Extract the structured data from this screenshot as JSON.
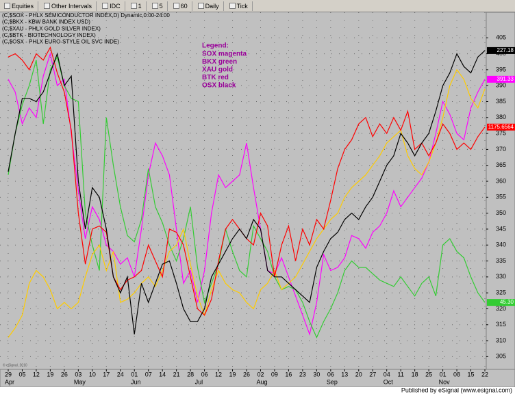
{
  "chart_data": {
    "type": "line",
    "toolbar": [
      "Equities",
      "Other Intervals",
      "IDC",
      "1",
      "5",
      "60",
      "Daily",
      "Tick"
    ],
    "header_lines": [
      "(C,$SOX - PHLX SEMICONDUCTOR INDEX,D) Dynamic,0:00-24:00",
      "(C,$BKX - KBW BANK INDEX USD)",
      "(C,$XAU - PHLX GOLD SILVER INDEX)",
      "(C,$BTK - BIOTECHNOLOGY INDEX)",
      "(C,$OSX - PHLX EURO-STYLE OIL SVC INDE)"
    ],
    "legend_title": "Legend:",
    "categories": [
      "29",
      null,
      "05",
      null,
      "12",
      null,
      "19",
      null,
      "26",
      null,
      "03",
      null,
      "10",
      null,
      "17",
      null,
      "24",
      null,
      "01",
      null,
      "07",
      null,
      "14",
      null,
      "21",
      null,
      "28",
      null,
      "06",
      null,
      "12",
      null,
      "19",
      null,
      "26",
      null,
      "02",
      null,
      "09",
      null,
      "16",
      null,
      "23",
      null,
      "30",
      null,
      "06",
      null,
      "13",
      null,
      "20",
      null,
      "27",
      null,
      "04",
      null,
      "11",
      null,
      "18",
      null,
      "25",
      null,
      "01",
      null,
      "08",
      null,
      "15",
      null,
      "22"
    ],
    "months": [
      "Apr",
      null,
      null,
      null,
      null,
      null,
      null,
      null,
      null,
      null,
      "May",
      null,
      null,
      null,
      null,
      null,
      null,
      null,
      "Jun",
      null,
      null,
      null,
      null,
      null,
      null,
      null,
      null,
      "Jul",
      null,
      null,
      null,
      null,
      null,
      null,
      null,
      null,
      "Aug",
      null,
      null,
      null,
      null,
      null,
      null,
      null,
      null,
      null,
      "Sep",
      null,
      null,
      null,
      null,
      null,
      null,
      null,
      "Oct",
      null,
      null,
      null,
      null,
      null,
      null,
      null,
      "Nov",
      null,
      null,
      null,
      null,
      null,
      null
    ],
    "series": [
      {
        "name": "SOX magenta",
        "color": "#ff00ff",
        "last_label": "391.33",
        "label_text_color": "#ffffff",
        "values": [
          392,
          388,
          378,
          383,
          380,
          393,
          400,
          390,
          392,
          375,
          357,
          342,
          352,
          348,
          340,
          338,
          334,
          336,
          330,
          345,
          362,
          372,
          368,
          362,
          345,
          328,
          332,
          322,
          332,
          350,
          362,
          358,
          360,
          362,
          372,
          358,
          345,
          332,
          331,
          336,
          330,
          324,
          318,
          312,
          322,
          337,
          332,
          333,
          336,
          343,
          342,
          339,
          344,
          346,
          350,
          357,
          352,
          355,
          358,
          361,
          366,
          375,
          385,
          381,
          375,
          373,
          383,
          388,
          392
        ]
      },
      {
        "name": "BKX green",
        "color": "#33cc33",
        "last_label": "45.30",
        "label_text_color": "#ffffff",
        "values": [
          362,
          375,
          384,
          390,
          398,
          378,
          395,
          399,
          390,
          386,
          385,
          350,
          340,
          332,
          380,
          365,
          352,
          343,
          341,
          348,
          364,
          352,
          347,
          340,
          335,
          342,
          352,
          333,
          322,
          328,
          334,
          345,
          338,
          332,
          330,
          346,
          342,
          338,
          330,
          326,
          327,
          326,
          322,
          316,
          311,
          316,
          320,
          325,
          332,
          335,
          333,
          333,
          331,
          329,
          328,
          327,
          330,
          327,
          324,
          328,
          330,
          324,
          340,
          342,
          338,
          336,
          330,
          325,
          322
        ]
      },
      {
        "name": "XAU gold",
        "color": "#ffcc00",
        "values": [
          311,
          314,
          318,
          328,
          332,
          330,
          326,
          320,
          322,
          320,
          322,
          330,
          337,
          340,
          332,
          338,
          322,
          323,
          325,
          328,
          330,
          327,
          332,
          338,
          340,
          345,
          334,
          324,
          318,
          326,
          332,
          328,
          326,
          325,
          322,
          320,
          326,
          328,
          332,
          326,
          328,
          330,
          334,
          338,
          342,
          345,
          348,
          350,
          355,
          358,
          360,
          362,
          365,
          368,
          372,
          374,
          376,
          368,
          364,
          362,
          366,
          372,
          380,
          390,
          395,
          392,
          386,
          383,
          389
        ]
      },
      {
        "name": "BTK red",
        "color": "#ff0000",
        "last_label": "1175.6564",
        "label_text_color": "#ffffff",
        "values": [
          399,
          400,
          398,
          395,
          400,
          398,
          402,
          394,
          388,
          376,
          350,
          334,
          345,
          346,
          344,
          330,
          326,
          329,
          330,
          332,
          340,
          335,
          330,
          345,
          344,
          340,
          330,
          320,
          318,
          323,
          335,
          345,
          348,
          345,
          342,
          340,
          350,
          346,
          330,
          340,
          346,
          335,
          345,
          340,
          348,
          345,
          354,
          364,
          370,
          373,
          378,
          380,
          374,
          378,
          375,
          380,
          376,
          382,
          370,
          372,
          368,
          372,
          378,
          375,
          370,
          372,
          370,
          374,
          377
        ]
      },
      {
        "name": "OSX black",
        "color": "#000000",
        "last_label": "227.18",
        "label_text_color": "#ffffff",
        "values": [
          363,
          375,
          386,
          386,
          385,
          388,
          394,
          400,
          390,
          393,
          360,
          345,
          358,
          355,
          345,
          330,
          325,
          330,
          312,
          328,
          322,
          328,
          334,
          335,
          328,
          320,
          316,
          316,
          320,
          330,
          334,
          338,
          342,
          345,
          342,
          348,
          345,
          332,
          330,
          330,
          328,
          326,
          324,
          322,
          333,
          338,
          342,
          344,
          348,
          350,
          348,
          352,
          355,
          360,
          365,
          368,
          375,
          372,
          368,
          372,
          375,
          382,
          390,
          394,
          400,
          396,
          394,
          399,
          401
        ]
      }
    ],
    "ylim": [
      301,
      413
    ],
    "yticks": [
      305,
      310,
      315,
      320,
      325,
      330,
      335,
      340,
      345,
      350,
      355,
      360,
      365,
      370,
      375,
      380,
      385,
      390,
      395,
      400,
      405
    ],
    "grid": true,
    "legend_color": "#990099",
    "background": "#c0c0c0",
    "watermark": "© eSignal, 2010",
    "footer": "Published by eSignal (www.esignal.com)"
  }
}
